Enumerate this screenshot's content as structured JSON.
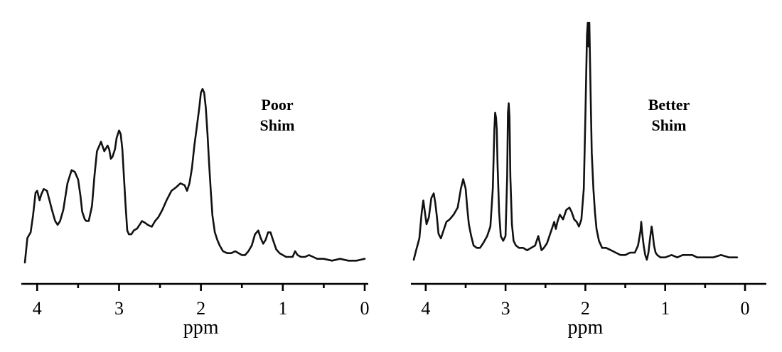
{
  "chart_data": [
    {
      "type": "line",
      "title": "",
      "xlabel": "ppm",
      "ylabel": "",
      "xlim": [
        4.15,
        0
      ],
      "ylim": [
        0,
        1
      ],
      "x_ticks": [
        4,
        3,
        2,
        1,
        0
      ],
      "x_tick_labels": [
        "4",
        "3",
        "2",
        "1",
        "0"
      ],
      "grid": false,
      "annotation": [
        "Poor",
        "Shim"
      ],
      "series": [
        {
          "x": [
            4.15,
            4.12,
            4.08,
            4.05,
            4.02,
            4.0,
            3.97,
            3.95,
            3.92,
            3.88,
            3.85,
            3.82,
            3.78,
            3.75,
            3.72,
            3.68,
            3.63,
            3.58,
            3.54,
            3.5,
            3.47,
            3.45,
            3.42,
            3.4,
            3.37,
            3.33,
            3.3,
            3.27,
            3.22,
            3.18,
            3.14,
            3.12,
            3.1,
            3.08,
            3.05,
            3.03,
            3.0,
            2.98,
            2.96,
            2.94,
            2.92,
            2.9,
            2.88,
            2.85,
            2.82,
            2.78,
            2.75,
            2.72,
            2.68,
            2.65,
            2.6,
            2.56,
            2.52,
            2.47,
            2.42,
            2.36,
            2.3,
            2.25,
            2.2,
            2.17,
            2.14,
            2.11,
            2.08,
            2.05,
            2.02,
            2.0,
            1.98,
            1.96,
            1.94,
            1.92,
            1.9,
            1.88,
            1.86,
            1.83,
            1.8,
            1.77,
            1.73,
            1.68,
            1.63,
            1.58,
            1.54,
            1.5,
            1.46,
            1.42,
            1.38,
            1.34,
            1.3,
            1.27,
            1.24,
            1.21,
            1.18,
            1.15,
            1.12,
            1.08,
            1.04,
            1.0,
            0.96,
            0.92,
            0.88,
            0.85,
            0.82,
            0.78,
            0.73,
            0.68,
            0.63,
            0.58,
            0.5,
            0.4,
            0.3,
            0.2,
            0.1,
            0.0
          ],
          "y": [
            0.0,
            0.13,
            0.16,
            0.25,
            0.37,
            0.38,
            0.33,
            0.36,
            0.39,
            0.38,
            0.33,
            0.28,
            0.22,
            0.2,
            0.22,
            0.28,
            0.42,
            0.49,
            0.48,
            0.44,
            0.35,
            0.27,
            0.23,
            0.22,
            0.22,
            0.3,
            0.46,
            0.59,
            0.64,
            0.59,
            0.62,
            0.6,
            0.55,
            0.56,
            0.6,
            0.66,
            0.7,
            0.68,
            0.6,
            0.45,
            0.3,
            0.17,
            0.15,
            0.15,
            0.17,
            0.18,
            0.2,
            0.22,
            0.21,
            0.2,
            0.19,
            0.22,
            0.24,
            0.28,
            0.33,
            0.38,
            0.4,
            0.42,
            0.41,
            0.38,
            0.42,
            0.5,
            0.62,
            0.72,
            0.82,
            0.9,
            0.92,
            0.9,
            0.82,
            0.68,
            0.52,
            0.38,
            0.25,
            0.16,
            0.12,
            0.09,
            0.06,
            0.05,
            0.05,
            0.06,
            0.05,
            0.04,
            0.04,
            0.06,
            0.09,
            0.15,
            0.17,
            0.13,
            0.1,
            0.12,
            0.16,
            0.16,
            0.12,
            0.07,
            0.05,
            0.04,
            0.03,
            0.03,
            0.03,
            0.06,
            0.04,
            0.03,
            0.03,
            0.04,
            0.03,
            0.02,
            0.02,
            0.01,
            0.02,
            0.01,
            0.01,
            0.02
          ]
        }
      ]
    },
    {
      "type": "line",
      "title": "",
      "xlabel": "ppm",
      "ylabel": "",
      "xlim": [
        4.15,
        0
      ],
      "ylim": [
        0,
        1
      ],
      "x_ticks": [
        4,
        3,
        2,
        1,
        0
      ],
      "x_tick_labels": [
        "4",
        "3",
        "2",
        "1",
        "0"
      ],
      "grid": false,
      "annotation": [
        "Better",
        "Shim"
      ],
      "series": [
        {
          "x": [
            4.15,
            4.12,
            4.08,
            4.05,
            4.03,
            4.01,
            3.99,
            3.96,
            3.93,
            3.9,
            3.88,
            3.86,
            3.84,
            3.81,
            3.78,
            3.74,
            3.7,
            3.65,
            3.6,
            3.56,
            3.53,
            3.5,
            3.48,
            3.46,
            3.43,
            3.4,
            3.36,
            3.32,
            3.28,
            3.23,
            3.19,
            3.16,
            3.14,
            3.13,
            3.12,
            3.11,
            3.1,
            3.08,
            3.06,
            3.03,
            3.0,
            2.98,
            2.97,
            2.96,
            2.95,
            2.94,
            2.92,
            2.9,
            2.87,
            2.83,
            2.78,
            2.73,
            2.68,
            2.63,
            2.59,
            2.57,
            2.55,
            2.52,
            2.48,
            2.43,
            2.39,
            2.37,
            2.35,
            2.32,
            2.28,
            2.24,
            2.2,
            2.17,
            2.14,
            2.11,
            2.08,
            2.05,
            2.02,
            2.0,
            1.98,
            1.97,
            1.96,
            1.95,
            1.94,
            1.93,
            1.92,
            1.9,
            1.88,
            1.86,
            1.83,
            1.79,
            1.74,
            1.68,
            1.62,
            1.56,
            1.5,
            1.44,
            1.38,
            1.34,
            1.31,
            1.3,
            1.29,
            1.27,
            1.25,
            1.23,
            1.21,
            1.19,
            1.17,
            1.16,
            1.14,
            1.12,
            1.1,
            1.06,
            1.0,
            0.92,
            0.85,
            0.78,
            0.72,
            0.66,
            0.6,
            0.5,
            0.4,
            0.3,
            0.2,
            0.1
          ],
          "y": [
            0.0,
            0.04,
            0.09,
            0.2,
            0.25,
            0.2,
            0.15,
            0.18,
            0.26,
            0.28,
            0.24,
            0.18,
            0.11,
            0.09,
            0.12,
            0.16,
            0.17,
            0.19,
            0.22,
            0.3,
            0.34,
            0.3,
            0.22,
            0.15,
            0.1,
            0.06,
            0.05,
            0.05,
            0.07,
            0.1,
            0.14,
            0.3,
            0.55,
            0.62,
            0.6,
            0.55,
            0.4,
            0.2,
            0.1,
            0.08,
            0.1,
            0.35,
            0.62,
            0.66,
            0.6,
            0.35,
            0.15,
            0.08,
            0.06,
            0.05,
            0.05,
            0.04,
            0.05,
            0.06,
            0.1,
            0.07,
            0.04,
            0.05,
            0.07,
            0.12,
            0.16,
            0.13,
            0.16,
            0.19,
            0.17,
            0.21,
            0.22,
            0.2,
            0.17,
            0.16,
            0.14,
            0.17,
            0.3,
            0.6,
            0.95,
            1.0,
            0.9,
            1.0,
            0.8,
            0.62,
            0.45,
            0.3,
            0.2,
            0.13,
            0.08,
            0.05,
            0.05,
            0.04,
            0.03,
            0.02,
            0.02,
            0.03,
            0.03,
            0.06,
            0.12,
            0.16,
            0.12,
            0.06,
            0.02,
            0.0,
            0.03,
            0.09,
            0.14,
            0.12,
            0.06,
            0.03,
            0.02,
            0.01,
            0.01,
            0.02,
            0.01,
            0.02,
            0.02,
            0.02,
            0.01,
            0.01,
            0.01,
            0.02,
            0.01,
            0.01
          ]
        }
      ]
    }
  ]
}
